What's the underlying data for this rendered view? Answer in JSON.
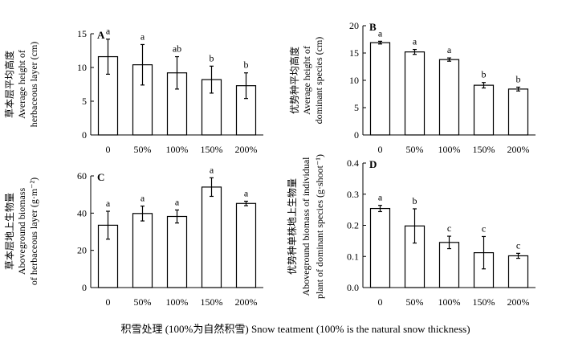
{
  "figure": {
    "x_caption": "积雪处理 (100%为自然积雪) Snow teatment (100% is the natural snow thickness)"
  },
  "chart_data": [
    {
      "type": "bar",
      "panel": "A",
      "categories": [
        "0",
        "50%",
        "100%",
        "150%",
        "200%"
      ],
      "values": [
        11.6,
        10.4,
        9.2,
        8.2,
        7.3
      ],
      "errors": [
        2.6,
        3.0,
        2.4,
        2.0,
        1.9
      ],
      "significance": [
        "a",
        "a",
        "ab",
        "b",
        "b"
      ],
      "ylabel_lines": [
        "草本层平均高度",
        "Average height of",
        "herbaceous layer (cm)"
      ],
      "ylim": [
        0,
        15
      ],
      "yticks": [
        0,
        5,
        10,
        15
      ]
    },
    {
      "type": "bar",
      "panel": "B",
      "categories": [
        "0",
        "50%",
        "100%",
        "150%",
        "200%"
      ],
      "values": [
        16.9,
        15.2,
        13.8,
        9.1,
        8.4
      ],
      "errors": [
        0.25,
        0.45,
        0.3,
        0.5,
        0.35
      ],
      "significance": [
        "a",
        "a",
        "a",
        "b",
        "b"
      ],
      "ylabel_lines": [
        "优势种平均高度",
        "Average height of",
        "dominant species (cm)"
      ],
      "ylim": [
        0,
        20
      ],
      "yticks": [
        0,
        5,
        10,
        15,
        20
      ]
    },
    {
      "type": "bar",
      "panel": "C",
      "categories": [
        "0",
        "50%",
        "100%",
        "150%",
        "200%"
      ],
      "values": [
        33.5,
        39.8,
        38.2,
        54.0,
        45.2
      ],
      "errors": [
        7.5,
        4.0,
        3.5,
        5.0,
        1.2
      ],
      "significance": [
        "a",
        "a",
        "a",
        "a",
        "a"
      ],
      "ylabel_lines": [
        "草本层地上生物量",
        "Aboveground biomass",
        "of herbaceous layer (g·m⁻²)"
      ],
      "ylim": [
        0,
        60
      ],
      "yticks": [
        0,
        20,
        40,
        60
      ]
    },
    {
      "type": "bar",
      "panel": "D",
      "categories": [
        "0",
        "50%",
        "100%",
        "150%",
        "200%"
      ],
      "values": [
        0.254,
        0.198,
        0.145,
        0.112,
        0.102
      ],
      "errors": [
        0.01,
        0.055,
        0.02,
        0.052,
        0.008
      ],
      "significance": [
        "a",
        "b",
        "c",
        "c",
        "c"
      ],
      "ylabel_lines": [
        "优势种单株地上生物量",
        "Aboveground biomass of individual",
        "plant of dominant species (g·shoot⁻¹)"
      ],
      "ylim": [
        0,
        0.4
      ],
      "yticks": [
        0,
        0.1,
        0.2,
        0.3,
        0.4
      ]
    }
  ]
}
